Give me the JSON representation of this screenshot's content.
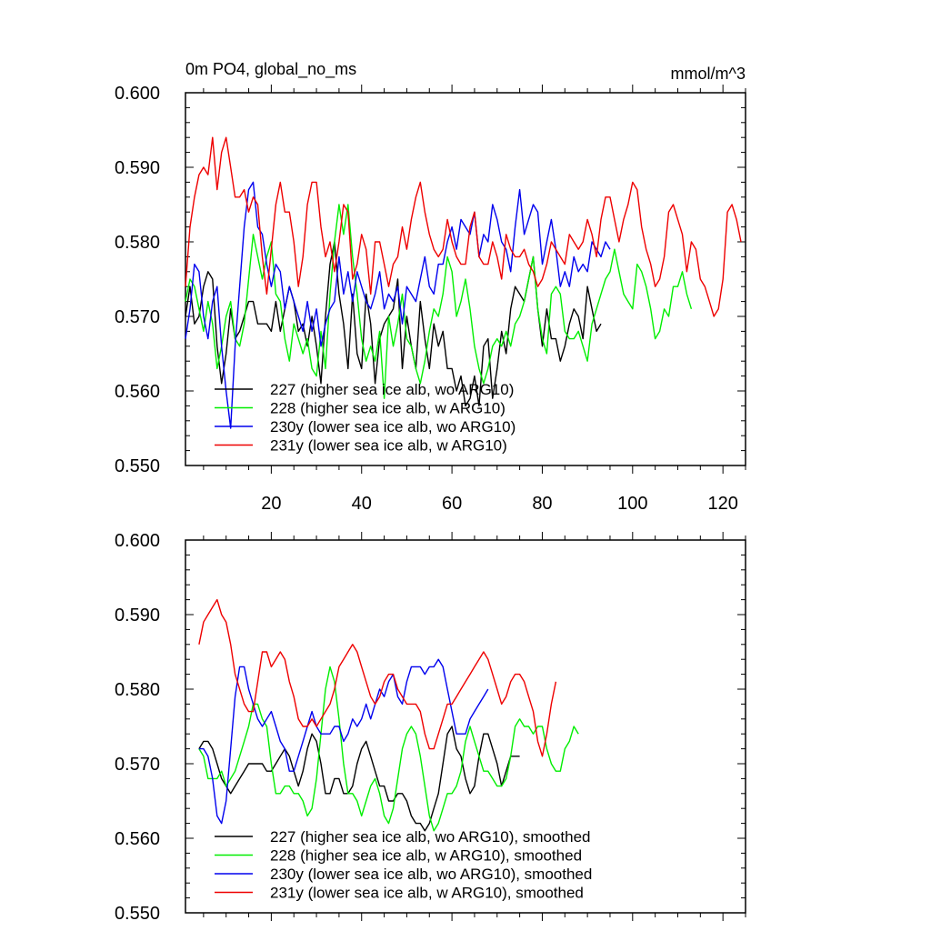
{
  "colors": {
    "227": "#000000",
    "228": "#00ee00",
    "230y": "#0000ee",
    "231y": "#ee0000"
  },
  "top": {
    "title_left": "0m PO4, global_no_ms",
    "title_right": "mmol/m^3"
  },
  "chart_data": [
    {
      "type": "line",
      "title": "0m PO4, global_no_ms",
      "units": "mmol/m^3",
      "xlim": [
        1,
        125
      ],
      "ylim": [
        0.55,
        0.6
      ],
      "y_ticks": [
        "0.600",
        "0.590",
        "0.580",
        "0.570",
        "0.560",
        "0.550"
      ],
      "x_ticks": [
        "20",
        "40",
        "60",
        "80",
        "100",
        "120"
      ],
      "legend_position": "bottom-left",
      "series": [
        {
          "name": "227 (higher sea ice alb, wo ARG10)",
          "color": "#000000",
          "x_start": 1,
          "values": [
            0.57,
            0.574,
            0.569,
            0.57,
            0.574,
            0.576,
            0.575,
            0.566,
            0.561,
            0.565,
            0.571,
            0.567,
            0.568,
            0.57,
            0.572,
            0.572,
            0.569,
            0.569,
            0.569,
            0.568,
            0.572,
            0.568,
            0.571,
            0.574,
            0.572,
            0.568,
            0.569,
            0.566,
            0.57,
            0.566,
            0.561,
            0.57,
            0.577,
            0.58,
            0.573,
            0.569,
            0.563,
            0.573,
            0.565,
            0.563,
            0.573,
            0.569,
            0.561,
            0.567,
            0.569,
            0.57,
            0.571,
            0.575,
            0.563,
            0.57,
            0.566,
            0.563,
            0.572,
            0.567,
            0.563,
            0.569,
            0.566,
            0.568,
            0.563,
            0.563,
            0.56,
            0.562,
            0.558,
            0.559,
            0.562,
            0.558,
            0.566,
            0.567,
            0.559,
            0.563,
            0.568,
            0.565,
            0.571,
            0.574,
            0.573,
            0.572,
            0.575,
            0.578,
            0.571,
            0.566,
            0.571,
            0.567,
            0.567,
            0.564,
            0.566,
            0.569,
            0.571,
            0.57,
            0.567,
            0.574,
            0.571,
            0.568,
            0.569
          ]
        },
        {
          "name": "228 (higher sea ice alb, w ARG10)",
          "color": "#00ee00",
          "x_start": 1,
          "values": [
            0.572,
            0.575,
            0.574,
            0.571,
            0.568,
            0.572,
            0.569,
            0.563,
            0.566,
            0.57,
            0.572,
            0.567,
            0.566,
            0.569,
            0.575,
            0.581,
            0.578,
            0.575,
            0.578,
            0.58,
            0.573,
            0.572,
            0.567,
            0.564,
            0.569,
            0.567,
            0.565,
            0.567,
            0.563,
            0.562,
            0.568,
            0.563,
            0.573,
            0.58,
            0.585,
            0.581,
            0.585,
            0.578,
            0.573,
            0.567,
            0.564,
            0.566,
            0.564,
            0.568,
            0.559,
            0.57,
            0.566,
            0.569,
            0.573,
            0.567,
            0.566,
            0.563,
            0.561,
            0.564,
            0.568,
            0.571,
            0.57,
            0.573,
            0.578,
            0.576,
            0.57,
            0.572,
            0.575,
            0.571,
            0.566,
            0.563,
            0.561,
            0.563,
            0.566,
            0.567,
            0.566,
            0.568,
            0.566,
            0.569,
            0.57,
            0.572,
            0.575,
            0.578,
            0.571,
            0.567,
            0.565,
            0.573,
            0.574,
            0.573,
            0.568,
            0.567,
            0.567,
            0.568,
            0.566,
            0.564,
            0.569,
            0.571,
            0.573,
            0.575,
            0.576,
            0.579,
            0.576,
            0.573,
            0.572,
            0.571,
            0.577,
            0.576,
            0.574,
            0.571,
            0.567,
            0.568,
            0.571,
            0.57,
            0.574,
            0.574,
            0.576,
            0.573,
            0.571
          ]
        },
        {
          "name": "230y (lower sea ice alb, wo ARG10)",
          "color": "#0000ee",
          "x_start": 1,
          "values": [
            0.567,
            0.571,
            0.577,
            0.576,
            0.57,
            0.567,
            0.572,
            0.574,
            0.566,
            0.56,
            0.555,
            0.566,
            0.574,
            0.582,
            0.587,
            0.588,
            0.582,
            0.581,
            0.577,
            0.574,
            0.577,
            0.576,
            0.571,
            0.574,
            0.572,
            0.57,
            0.568,
            0.572,
            0.568,
            0.571,
            0.566,
            0.569,
            0.571,
            0.572,
            0.578,
            0.573,
            0.576,
            0.572,
            0.576,
            0.574,
            0.572,
            0.571,
            0.573,
            0.576,
            0.571,
            0.573,
            0.572,
            0.574,
            0.569,
            0.574,
            0.573,
            0.572,
            0.575,
            0.578,
            0.574,
            0.573,
            0.577,
            0.577,
            0.58,
            0.582,
            0.579,
            0.583,
            0.582,
            0.581,
            0.584,
            0.578,
            0.581,
            0.58,
            0.585,
            0.583,
            0.58,
            0.579,
            0.576,
            0.582,
            0.587,
            0.581,
            0.583,
            0.585,
            0.584,
            0.577,
            0.58,
            0.583,
            0.579,
            0.574,
            0.576,
            0.574,
            0.578,
            0.576,
            0.577,
            0.576,
            0.58,
            0.579,
            0.578,
            0.58,
            0.579
          ]
        },
        {
          "name": "231y (lower sea ice alb, w ARG10)",
          "color": "#ee0000",
          "x_start": 1,
          "values": [
            0.574,
            0.582,
            0.586,
            0.589,
            0.59,
            0.589,
            0.594,
            0.587,
            0.592,
            0.594,
            0.59,
            0.586,
            0.586,
            0.587,
            0.584,
            0.586,
            0.585,
            0.578,
            0.573,
            0.579,
            0.585,
            0.588,
            0.584,
            0.584,
            0.58,
            0.574,
            0.578,
            0.585,
            0.588,
            0.588,
            0.582,
            0.578,
            0.58,
            0.576,
            0.58,
            0.585,
            0.584,
            0.575,
            0.577,
            0.581,
            0.579,
            0.573,
            0.58,
            0.58,
            0.577,
            0.574,
            0.577,
            0.578,
            0.582,
            0.579,
            0.583,
            0.586,
            0.588,
            0.584,
            0.581,
            0.579,
            0.578,
            0.579,
            0.583,
            0.58,
            0.578,
            0.577,
            0.577,
            0.582,
            0.584,
            0.578,
            0.577,
            0.577,
            0.58,
            0.578,
            0.575,
            0.581,
            0.579,
            0.578,
            0.578,
            0.579,
            0.577,
            0.576,
            0.574,
            0.575,
            0.577,
            0.58,
            0.579,
            0.578,
            0.577,
            0.581,
            0.58,
            0.579,
            0.58,
            0.583,
            0.581,
            0.578,
            0.583,
            0.586,
            0.586,
            0.583,
            0.58,
            0.583,
            0.585,
            0.588,
            0.587,
            0.582,
            0.579,
            0.577,
            0.574,
            0.575,
            0.578,
            0.584,
            0.585,
            0.583,
            0.581,
            0.576,
            0.58,
            0.579,
            0.575,
            0.574,
            0.572,
            0.57,
            0.571,
            0.575,
            0.584,
            0.585,
            0.583,
            0.58
          ]
        }
      ]
    },
    {
      "type": "line",
      "xlim": [
        1,
        125
      ],
      "ylim": [
        0.55,
        0.6
      ],
      "y_ticks": [
        "0.600",
        "0.590",
        "0.580",
        "0.570",
        "0.560",
        "0.550"
      ],
      "legend_position": "bottom-left",
      "series": [
        {
          "name": "227 (higher sea ice alb, wo ARG10), smoothed",
          "color": "#000000",
          "x_start": 4,
          "values": [
            0.572,
            0.573,
            0.573,
            0.572,
            0.57,
            0.568,
            0.567,
            0.566,
            0.567,
            0.568,
            0.569,
            0.57,
            0.57,
            0.57,
            0.57,
            0.569,
            0.569,
            0.57,
            0.571,
            0.572,
            0.571,
            0.569,
            0.567,
            0.569,
            0.572,
            0.574,
            0.573,
            0.57,
            0.566,
            0.566,
            0.568,
            0.568,
            0.566,
            0.566,
            0.567,
            0.57,
            0.572,
            0.573,
            0.571,
            0.569,
            0.567,
            0.567,
            0.565,
            0.565,
            0.566,
            0.566,
            0.565,
            0.563,
            0.562,
            0.562,
            0.561,
            0.562,
            0.564,
            0.566,
            0.57,
            0.574,
            0.575,
            0.572,
            0.571,
            0.568,
            0.566,
            0.567,
            0.571,
            0.574,
            0.574,
            0.572,
            0.57,
            0.567,
            0.569,
            0.571,
            0.571,
            0.571
          ]
        },
        {
          "name": "228 (higher sea ice alb, w ARG10), smoothed",
          "color": "#00ee00",
          "x_start": 4,
          "values": [
            0.572,
            0.571,
            0.568,
            0.568,
            0.568,
            0.569,
            0.567,
            0.568,
            0.569,
            0.571,
            0.573,
            0.575,
            0.578,
            0.578,
            0.576,
            0.575,
            0.57,
            0.566,
            0.566,
            0.567,
            0.567,
            0.566,
            0.566,
            0.565,
            0.563,
            0.564,
            0.568,
            0.574,
            0.58,
            0.583,
            0.581,
            0.576,
            0.57,
            0.566,
            0.566,
            0.565,
            0.563,
            0.565,
            0.567,
            0.568,
            0.566,
            0.563,
            0.562,
            0.564,
            0.568,
            0.572,
            0.574,
            0.575,
            0.574,
            0.571,
            0.567,
            0.563,
            0.561,
            0.562,
            0.564,
            0.566,
            0.566,
            0.567,
            0.569,
            0.573,
            0.575,
            0.573,
            0.571,
            0.569,
            0.569,
            0.568,
            0.567,
            0.567,
            0.568,
            0.571,
            0.575,
            0.576,
            0.575,
            0.575,
            0.574,
            0.575,
            0.575,
            0.572,
            0.57,
            0.569,
            0.569,
            0.572,
            0.573,
            0.575,
            0.574
          ]
        },
        {
          "name": "230y (lower sea ice alb, wo ARG10), smoothed",
          "color": "#0000ee",
          "x_start": 4,
          "values": [
            0.572,
            0.572,
            0.571,
            0.568,
            0.563,
            0.562,
            0.565,
            0.572,
            0.579,
            0.583,
            0.583,
            0.58,
            0.578,
            0.576,
            0.575,
            0.576,
            0.577,
            0.575,
            0.573,
            0.572,
            0.569,
            0.569,
            0.571,
            0.573,
            0.575,
            0.577,
            0.575,
            0.574,
            0.574,
            0.574,
            0.575,
            0.575,
            0.573,
            0.574,
            0.576,
            0.575,
            0.576,
            0.578,
            0.576,
            0.578,
            0.58,
            0.579,
            0.581,
            0.582,
            0.579,
            0.578,
            0.581,
            0.583,
            0.583,
            0.583,
            0.582,
            0.583,
            0.583,
            0.584,
            0.583,
            0.58,
            0.577,
            0.574,
            0.574,
            0.574,
            0.576,
            0.577,
            0.578,
            0.579,
            0.58
          ]
        },
        {
          "name": "231y (lower sea ice alb, w ARG10), smoothed",
          "color": "#ee0000",
          "x_start": 4,
          "values": [
            0.586,
            0.589,
            0.59,
            0.591,
            0.592,
            0.59,
            0.589,
            0.586,
            0.582,
            0.58,
            0.578,
            0.577,
            0.577,
            0.581,
            0.585,
            0.585,
            0.583,
            0.584,
            0.585,
            0.584,
            0.581,
            0.579,
            0.576,
            0.575,
            0.575,
            0.576,
            0.575,
            0.576,
            0.577,
            0.578,
            0.58,
            0.583,
            0.584,
            0.585,
            0.586,
            0.585,
            0.583,
            0.581,
            0.579,
            0.578,
            0.579,
            0.581,
            0.582,
            0.582,
            0.58,
            0.579,
            0.578,
            0.578,
            0.578,
            0.577,
            0.574,
            0.572,
            0.572,
            0.574,
            0.576,
            0.578,
            0.578,
            0.579,
            0.58,
            0.581,
            0.582,
            0.583,
            0.584,
            0.585,
            0.584,
            0.582,
            0.58,
            0.578,
            0.579,
            0.581,
            0.582,
            0.582,
            0.581,
            0.579,
            0.577,
            0.573,
            0.571,
            0.574,
            0.578,
            0.581
          ]
        }
      ]
    }
  ]
}
